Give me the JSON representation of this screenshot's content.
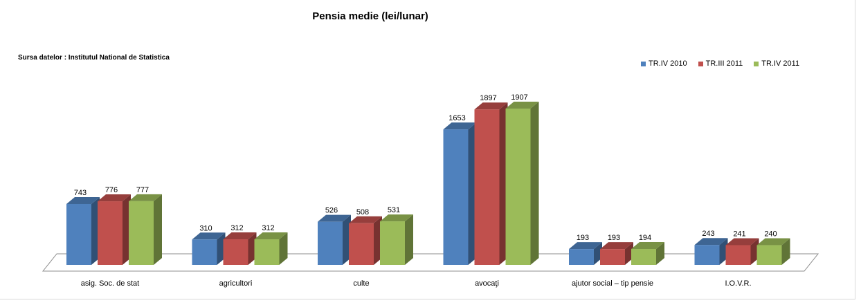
{
  "chart_data": {
    "type": "bar",
    "title": "Pensia medie (lei/lunar)",
    "source_note": "Sursa datelor : Institutul National de Statistica",
    "categories": [
      "asig. Soc. de stat",
      "agricultori",
      "culte",
      "avocaţi",
      "ajutor social – tip pensie",
      "I.O.V.R."
    ],
    "series": [
      {
        "name": "TR.IV 2010",
        "color": "#4f81bd",
        "values": [
          743,
          310,
          526,
          1653,
          193,
          243
        ]
      },
      {
        "name": "TR.III 2011",
        "color": "#c0504d",
        "values": [
          776,
          312,
          508,
          1897,
          193,
          241
        ]
      },
      {
        "name": "TR.IV 2011",
        "color": "#9bbb59",
        "values": [
          777,
          312,
          531,
          1907,
          194,
          240
        ]
      }
    ],
    "ylim": [
      0,
      2000
    ],
    "grid": false,
    "legend_position": "top-right",
    "style": "3d-clustered-column"
  }
}
